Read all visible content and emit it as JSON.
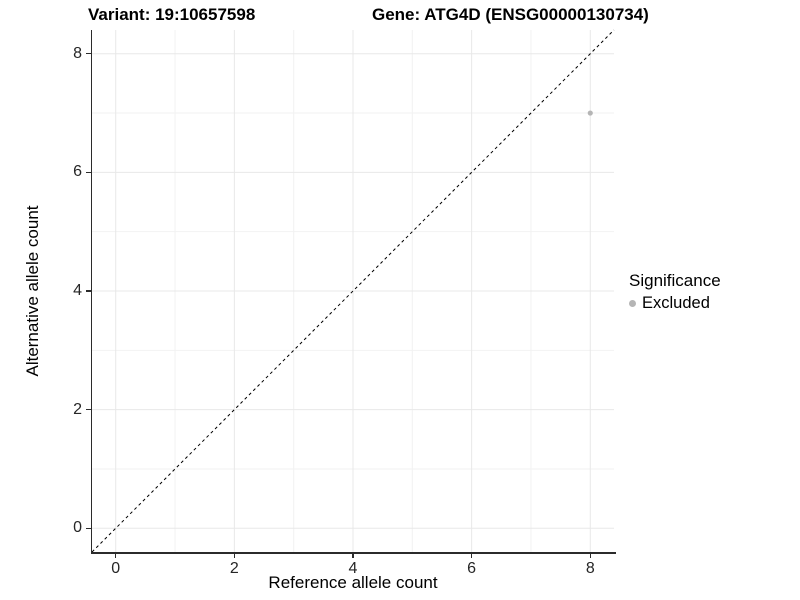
{
  "titles": {
    "variant": "Variant: 19:10657598",
    "gene": "Gene: ATG4D (ENSG00000130734)"
  },
  "chart_data": {
    "type": "scatter",
    "xlabel": "Reference allele count",
    "ylabel": "Alternative allele count",
    "xlim": [
      -0.4,
      8.4
    ],
    "ylim": [
      -0.4,
      8.4
    ],
    "x_major_ticks": [
      0,
      2,
      4,
      6,
      8
    ],
    "x_minor_ticks": [
      1,
      3,
      5,
      7
    ],
    "y_major_ticks": [
      0,
      2,
      4,
      6,
      8
    ],
    "y_minor_ticks": [
      1,
      3,
      5,
      7
    ],
    "grid": "major+minor",
    "identity_line": {
      "style": "dashed",
      "equation": "y = x",
      "from": [
        -0.4,
        -0.4
      ],
      "to": [
        8.4,
        8.4
      ]
    },
    "series": [
      {
        "name": "Excluded",
        "color": "#b5b5b5",
        "marker": "circle",
        "points": [
          {
            "x": 8,
            "y": 7
          }
        ]
      }
    ],
    "legend": {
      "title": "Significance",
      "position": "right",
      "items": [
        {
          "label": "Excluded",
          "color": "#b5b5b5",
          "marker": "circle"
        }
      ]
    }
  },
  "colors": {
    "background": "#ffffff",
    "grid_major": "#e8e8e8",
    "grid_minor": "#f2f2f2",
    "axis_line": "#2b2b2b",
    "tick_label": "#262626",
    "identity_line": "#000000"
  }
}
